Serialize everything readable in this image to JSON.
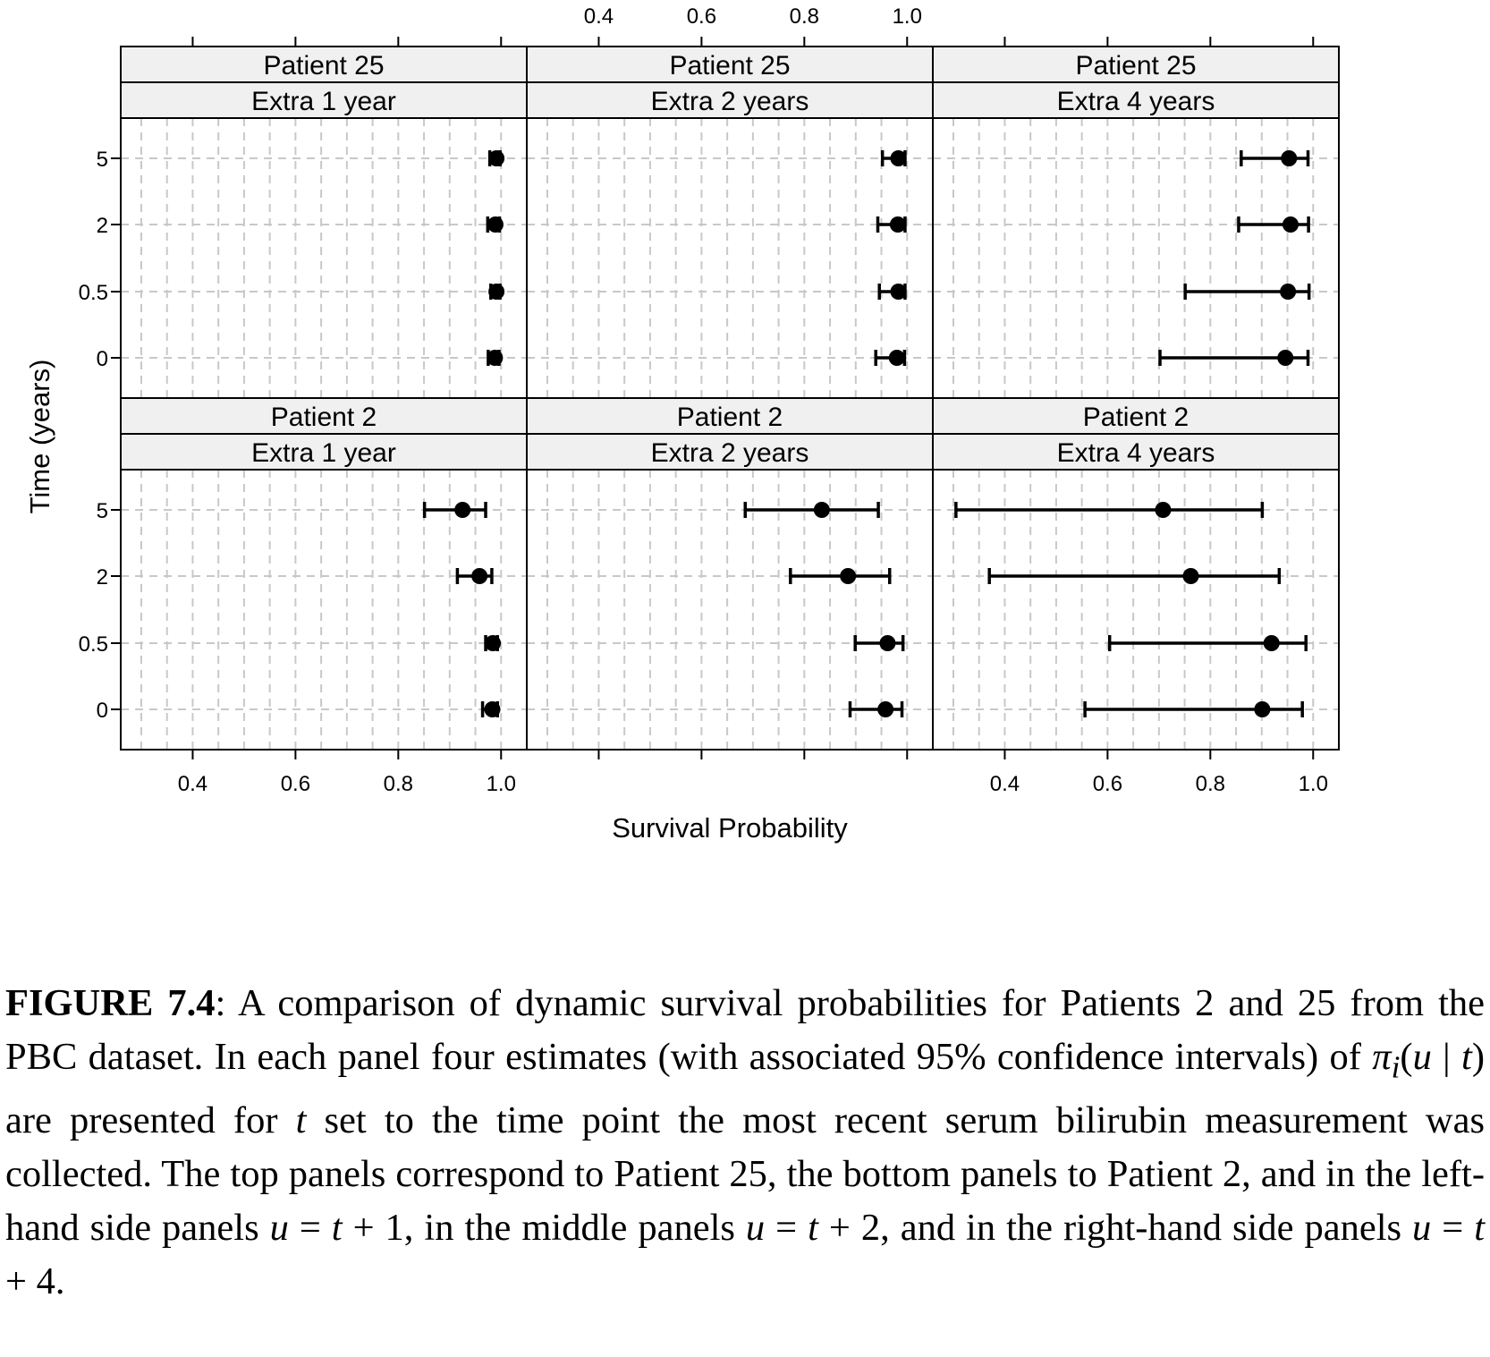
{
  "chart_data": {
    "type": "scatter",
    "subtype": "dot-plot with 95% confidence intervals, 2x3 trellis panels",
    "xlabel": "Survival Probability",
    "ylabel": "Time (years)",
    "xlim": [
      0.26,
      1.05
    ],
    "x_ticks": [
      0.4,
      0.6,
      0.8,
      1.0
    ],
    "x_tick_labels": [
      "0.4",
      "0.6",
      "0.8",
      "1.0"
    ],
    "y_categories": [
      "0",
      "0.5",
      "2",
      "5"
    ],
    "grid": true,
    "grid_style": "dashed light gray",
    "marker_color": "#000000",
    "panels": [
      {
        "patient": "Patient 25",
        "extra": "Extra 1 year",
        "points": [
          {
            "time": "5",
            "estimate": 0.991,
            "lower": 0.978,
            "upper": 0.998
          },
          {
            "time": "2",
            "estimate": 0.989,
            "lower": 0.974,
            "upper": 0.997
          },
          {
            "time": "0.5",
            "estimate": 0.991,
            "lower": 0.98,
            "upper": 0.998
          },
          {
            "time": "0",
            "estimate": 0.988,
            "lower": 0.975,
            "upper": 0.996
          }
        ]
      },
      {
        "patient": "Patient 25",
        "extra": "Extra 2 years",
        "points": [
          {
            "time": "5",
            "estimate": 0.983,
            "lower": 0.952,
            "upper": 0.996
          },
          {
            "time": "2",
            "estimate": 0.982,
            "lower": 0.943,
            "upper": 0.996
          },
          {
            "time": "0.5",
            "estimate": 0.983,
            "lower": 0.946,
            "upper": 0.996
          },
          {
            "time": "0",
            "estimate": 0.98,
            "lower": 0.939,
            "upper": 0.995
          }
        ]
      },
      {
        "patient": "Patient 25",
        "extra": "Extra 4 years",
        "points": [
          {
            "time": "5",
            "estimate": 0.953,
            "lower": 0.86,
            "upper": 0.99
          },
          {
            "time": "2",
            "estimate": 0.956,
            "lower": 0.855,
            "upper": 0.991
          },
          {
            "time": "0.5",
            "estimate": 0.951,
            "lower": 0.751,
            "upper": 0.992
          },
          {
            "time": "0",
            "estimate": 0.946,
            "lower": 0.702,
            "upper": 0.99
          }
        ]
      },
      {
        "patient": "Patient 2",
        "extra": "Extra 1 year",
        "points": [
          {
            "time": "5",
            "estimate": 0.925,
            "lower": 0.851,
            "upper": 0.97
          },
          {
            "time": "2",
            "estimate": 0.958,
            "lower": 0.915,
            "upper": 0.982
          },
          {
            "time": "0.5",
            "estimate": 0.984,
            "lower": 0.97,
            "upper": 0.993
          },
          {
            "time": "0",
            "estimate": 0.983,
            "lower": 0.964,
            "upper": 0.993
          }
        ]
      },
      {
        "patient": "Patient 2",
        "extra": "Extra 2 years",
        "points": [
          {
            "time": "5",
            "estimate": 0.834,
            "lower": 0.685,
            "upper": 0.944
          },
          {
            "time": "2",
            "estimate": 0.885,
            "lower": 0.773,
            "upper": 0.966
          },
          {
            "time": "0.5",
            "estimate": 0.962,
            "lower": 0.899,
            "upper": 0.992
          },
          {
            "time": "0",
            "estimate": 0.958,
            "lower": 0.889,
            "upper": 0.99
          }
        ]
      },
      {
        "patient": "Patient 2",
        "extra": "Extra 4 years",
        "points": [
          {
            "time": "5",
            "estimate": 0.708,
            "lower": 0.305,
            "upper": 0.901
          },
          {
            "time": "2",
            "estimate": 0.762,
            "lower": 0.37,
            "upper": 0.934
          },
          {
            "time": "0.5",
            "estimate": 0.919,
            "lower": 0.604,
            "upper": 0.986
          },
          {
            "time": "0",
            "estimate": 0.901,
            "lower": 0.556,
            "upper": 0.979
          }
        ]
      }
    ]
  },
  "caption": {
    "label": "FIGURE 7.4",
    "part1": ": A comparison of dynamic survival probabilities for Patients 2 and 25 from the PBC dataset. In each panel four estimates (with associated 95% confidence intervals) of ",
    "pi_symbol": "π",
    "pi_subscript": "i",
    "paren_open": "(",
    "u1": "u",
    "bar": " | ",
    "t1": "t",
    "paren_close": ")",
    "part2": " are presented for ",
    "t2": "t",
    "part3": " set to the time point the most recent serum bilirubin measurement was collected. The top panels correspond to Patient 25, the bottom panels to Patient 2, and in the left-hand side panels ",
    "eq1_u": "u",
    "eq1_mid": " = ",
    "eq1_t": "t",
    "eq1_end": " + 1",
    "part4": ", in the middle panels ",
    "eq2_u": "u",
    "eq2_mid": " = ",
    "eq2_t": "t",
    "eq2_end": " + 2",
    "part5": ", and in the right-hand side panels ",
    "eq3_u": "u",
    "eq3_mid": " = ",
    "eq3_t": "t",
    "eq3_end": " + 4",
    "part6": "."
  }
}
